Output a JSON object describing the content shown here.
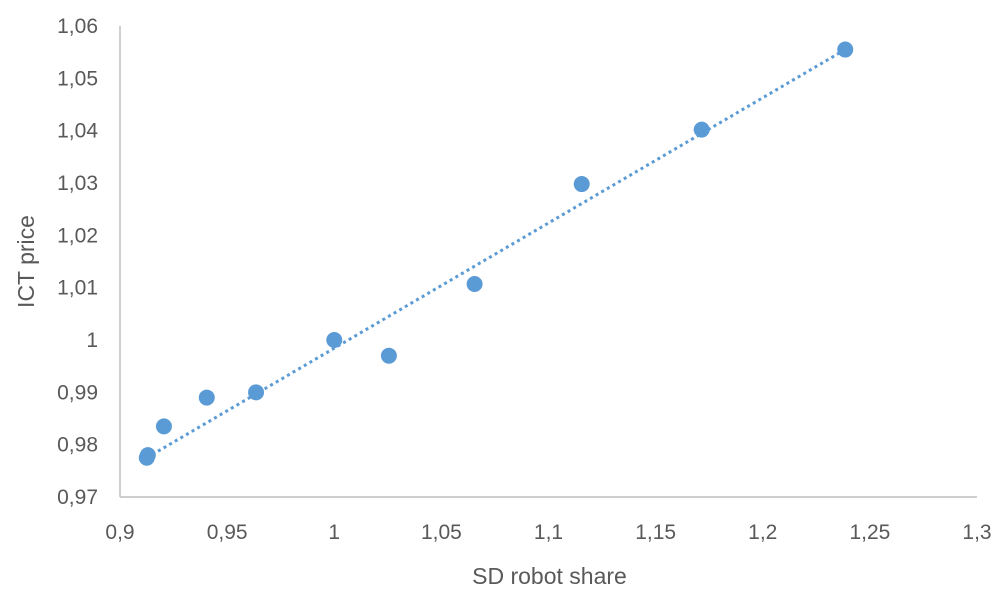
{
  "colors": {
    "series": "#5B9BD5",
    "trendline": "#5B9BD5",
    "axis": "#BFBFBF",
    "text": "#595959"
  },
  "chart_data": {
    "type": "scatter",
    "title": "",
    "xlabel": "SD robot share",
    "ylabel": "ICT price",
    "xlim": [
      0.9,
      1.3
    ],
    "ylim": [
      0.97,
      1.06
    ],
    "x_ticks": [
      "0,9",
      "0,95",
      "1",
      "1,05",
      "1,1",
      "1,15",
      "1,2",
      "1,25",
      "1,3"
    ],
    "y_ticks": [
      "0,97",
      "0,98",
      "0,99",
      "1",
      "1,01",
      "1,02",
      "1,03",
      "1,04",
      "1,05",
      "1,06"
    ],
    "grid": false,
    "legend": "none",
    "series": [
      {
        "points": [
          {
            "x": 0.9125,
            "y": 0.9775
          },
          {
            "x": 0.913,
            "y": 0.978
          },
          {
            "x": 0.9205,
            "y": 0.9835
          },
          {
            "x": 0.9405,
            "y": 0.989
          },
          {
            "x": 0.9635,
            "y": 0.99
          },
          {
            "x": 1.0,
            "y": 1.0
          },
          {
            "x": 1.0255,
            "y": 0.997
          },
          {
            "x": 1.0655,
            "y": 1.0107
          },
          {
            "x": 1.1155,
            "y": 1.0298
          },
          {
            "x": 1.1715,
            "y": 1.0402
          },
          {
            "x": 1.2385,
            "y": 1.0555
          }
        ]
      }
    ],
    "trendline": {
      "type": "linear",
      "style": "dotted",
      "x": [
        0.9125,
        1.2385
      ],
      "y": [
        0.9775,
        1.0555
      ]
    }
  }
}
